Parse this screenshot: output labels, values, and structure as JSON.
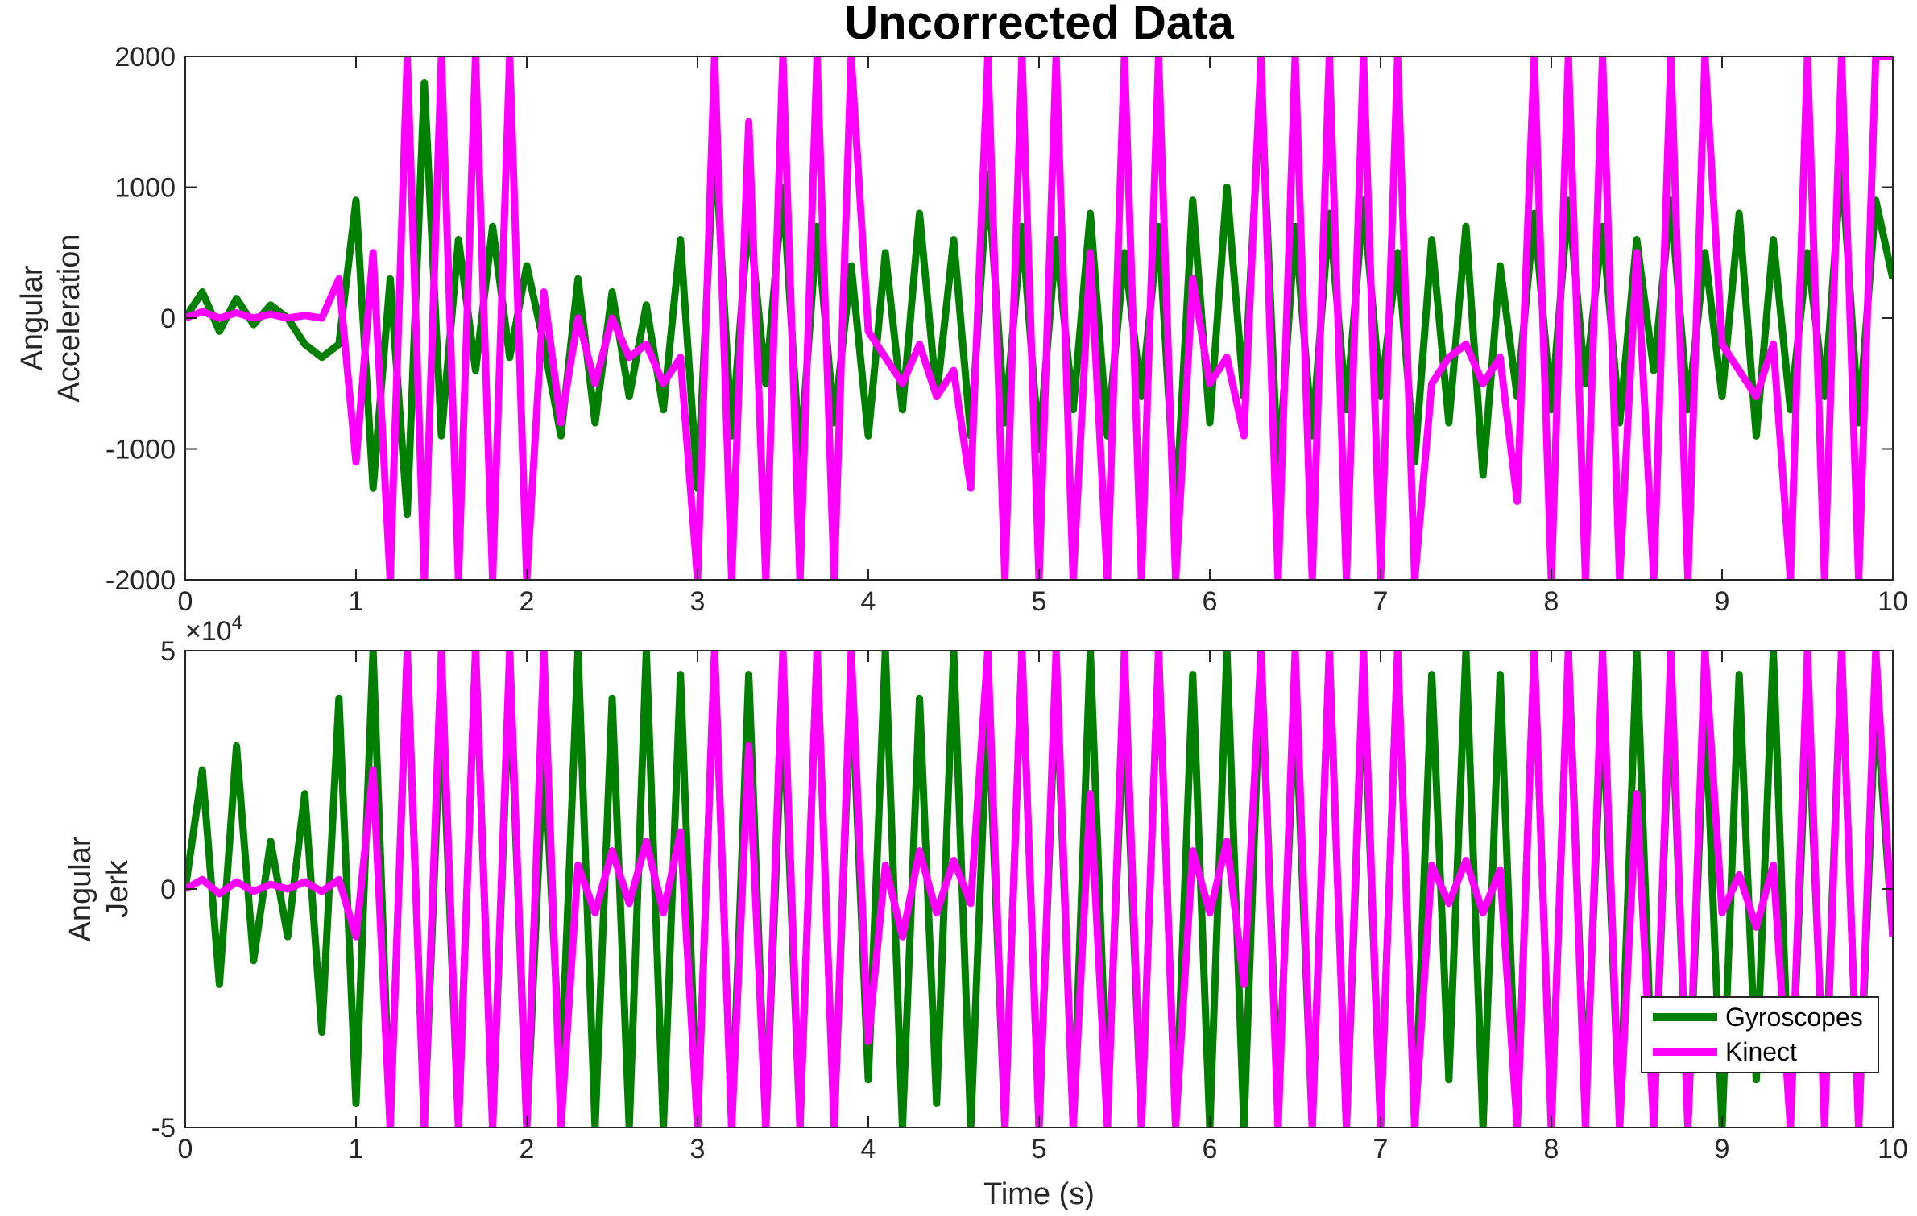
{
  "figure": {
    "title": "Uncorrected Data",
    "colors": {
      "gyroscopes": "#007f00",
      "kinect": "#ff00ff",
      "axis": "#262626",
      "background": "#ffffff"
    }
  },
  "chart_data": [
    {
      "type": "line",
      "title": "Uncorrected Data",
      "xlabel": "",
      "ylabel": [
        "Angular",
        "Acceleration"
      ],
      "xlim": [
        0,
        10
      ],
      "ylim": [
        -2000,
        2000
      ],
      "xticks": [
        "0",
        "1",
        "2",
        "3",
        "4",
        "5",
        "6",
        "7",
        "8",
        "9",
        "10"
      ],
      "yticks": [
        "-2000",
        "-1000",
        "0",
        "1000",
        "2000"
      ],
      "grid": false,
      "series": [
        {
          "name": "Gyroscopes",
          "color": "#007f00",
          "x": [
            0.0,
            0.1,
            0.2,
            0.3,
            0.4,
            0.5,
            0.6,
            0.7,
            0.8,
            0.9,
            1.0,
            1.1,
            1.2,
            1.3,
            1.4,
            1.5,
            1.6,
            1.7,
            1.8,
            1.9,
            2.0,
            2.1,
            2.2,
            2.3,
            2.4,
            2.5,
            2.6,
            2.7,
            2.8,
            2.9,
            3.0,
            3.1,
            3.2,
            3.3,
            3.4,
            3.5,
            3.6,
            3.7,
            3.8,
            3.9,
            4.0,
            4.1,
            4.2,
            4.3,
            4.4,
            4.5,
            4.6,
            4.7,
            4.8,
            4.9,
            5.0,
            5.1,
            5.2,
            5.3,
            5.4,
            5.5,
            5.6,
            5.7,
            5.8,
            5.9,
            6.0,
            6.1,
            6.2,
            6.3,
            6.4,
            6.5,
            6.6,
            6.7,
            6.8,
            6.9,
            7.0,
            7.1,
            7.2,
            7.3,
            7.4,
            7.5,
            7.6,
            7.7,
            7.8,
            7.9,
            8.0,
            8.1,
            8.2,
            8.3,
            8.4,
            8.5,
            8.6,
            8.7,
            8.8,
            8.9,
            9.0,
            9.1,
            9.2,
            9.3,
            9.4,
            9.5,
            9.6,
            9.7,
            9.8,
            9.9,
            10.0
          ],
          "y": [
            0,
            200,
            -100,
            150,
            -50,
            100,
            0,
            -200,
            -300,
            -200,
            900,
            -1300,
            300,
            -1500,
            1800,
            -900,
            600,
            -400,
            700,
            -300,
            400,
            -200,
            -900,
            300,
            -800,
            200,
            -600,
            100,
            -700,
            600,
            -1300,
            1400,
            -900,
            800,
            -500,
            1000,
            -1100,
            700,
            -800,
            400,
            -900,
            500,
            -700,
            800,
            -600,
            600,
            -900,
            1100,
            -800,
            700,
            -1000,
            600,
            -700,
            800,
            -900,
            500,
            -600,
            700,
            -1500,
            900,
            -800,
            1000,
            -600,
            1800,
            -1200,
            700,
            -900,
            800,
            -700,
            900,
            -600,
            500,
            -1100,
            600,
            -800,
            700,
            -1200,
            400,
            -600,
            800,
            -700,
            900,
            -500,
            700,
            -800,
            600,
            -400,
            900,
            -700,
            500,
            -600,
            800,
            -900,
            600,
            -700,
            500,
            -600,
            1200,
            -800,
            900,
            300
          ]
        },
        {
          "name": "Kinect",
          "color": "#ff00ff",
          "x": [
            0.0,
            0.1,
            0.2,
            0.3,
            0.4,
            0.5,
            0.6,
            0.7,
            0.8,
            0.9,
            1.0,
            1.1,
            1.2,
            1.3,
            1.4,
            1.5,
            1.6,
            1.7,
            1.8,
            1.9,
            2.0,
            2.1,
            2.2,
            2.3,
            2.4,
            2.5,
            2.6,
            2.7,
            2.8,
            2.9,
            3.0,
            3.1,
            3.2,
            3.3,
            3.4,
            3.5,
            3.6,
            3.7,
            3.8,
            3.9,
            4.0,
            4.1,
            4.2,
            4.3,
            4.4,
            4.5,
            4.6,
            4.7,
            4.8,
            4.9,
            5.0,
            5.1,
            5.2,
            5.3,
            5.4,
            5.5,
            5.6,
            5.7,
            5.8,
            5.9,
            6.0,
            6.1,
            6.2,
            6.3,
            6.4,
            6.5,
            6.6,
            6.7,
            6.8,
            6.9,
            7.0,
            7.1,
            7.2,
            7.3,
            7.4,
            7.5,
            7.6,
            7.7,
            7.8,
            7.9,
            8.0,
            8.1,
            8.2,
            8.3,
            8.4,
            8.5,
            8.6,
            8.7,
            8.8,
            8.9,
            9.0,
            9.1,
            9.2,
            9.3,
            9.4,
            9.5,
            9.6,
            9.7,
            9.8,
            9.9,
            10.0
          ],
          "y": [
            0,
            50,
            0,
            40,
            0,
            30,
            0,
            20,
            0,
            300,
            -1100,
            500,
            -2000,
            2000,
            -2000,
            2000,
            -2000,
            2000,
            -2000,
            2000,
            -2000,
            200,
            -800,
            0,
            -500,
            0,
            -300,
            -200,
            -500,
            -300,
            -2000,
            2000,
            -2000,
            1500,
            -2000,
            2000,
            -2000,
            2000,
            -2000,
            2000,
            -100,
            -300,
            -500,
            -200,
            -600,
            -400,
            -1300,
            2000,
            -2000,
            2000,
            -2000,
            2000,
            -2000,
            500,
            -2000,
            2000,
            -2000,
            2000,
            -2000,
            300,
            -500,
            -300,
            -900,
            2000,
            -2000,
            2000,
            -2000,
            2000,
            -2000,
            2000,
            -2000,
            2000,
            -2000,
            -500,
            -300,
            -200,
            -500,
            -300,
            -1400,
            2000,
            -2000,
            2000,
            -2000,
            2000,
            -2000,
            500,
            -2000,
            2000,
            -2000,
            2000,
            -200,
            -400,
            -600,
            -200,
            -2000,
            2000,
            -2000,
            2000,
            -2000,
            2000,
            2000
          ]
        }
      ]
    },
    {
      "type": "line",
      "title": "",
      "xlabel": "Time (s)",
      "ylabel": [
        "Angular",
        "Jerk"
      ],
      "xlim": [
        0,
        10
      ],
      "ylim": [
        -50000,
        50000
      ],
      "exponent_label": "×10",
      "exponent_power": "4",
      "xticks": [
        "0",
        "1",
        "2",
        "3",
        "4",
        "5",
        "6",
        "7",
        "8",
        "9",
        "10"
      ],
      "yticks": [
        "-5",
        "0",
        "5"
      ],
      "grid": false,
      "legend": {
        "position": "bottom-right",
        "entries": [
          "Gyroscopes",
          "Kinect"
        ]
      },
      "series": [
        {
          "name": "Gyroscopes",
          "color": "#007f00",
          "x": [
            0.0,
            0.1,
            0.2,
            0.3,
            0.4,
            0.5,
            0.6,
            0.7,
            0.8,
            0.9,
            1.0,
            1.1,
            1.2,
            1.3,
            1.4,
            1.5,
            1.6,
            1.7,
            1.8,
            1.9,
            2.0,
            2.1,
            2.2,
            2.3,
            2.4,
            2.5,
            2.6,
            2.7,
            2.8,
            2.9,
            3.0,
            3.1,
            3.2,
            3.3,
            3.4,
            3.5,
            3.6,
            3.7,
            3.8,
            3.9,
            4.0,
            4.1,
            4.2,
            4.3,
            4.4,
            4.5,
            4.6,
            4.7,
            4.8,
            4.9,
            5.0,
            5.1,
            5.2,
            5.3,
            5.4,
            5.5,
            5.6,
            5.7,
            5.8,
            5.9,
            6.0,
            6.1,
            6.2,
            6.3,
            6.4,
            6.5,
            6.6,
            6.7,
            6.8,
            6.9,
            7.0,
            7.1,
            7.2,
            7.3,
            7.4,
            7.5,
            7.6,
            7.7,
            7.8,
            7.9,
            8.0,
            8.1,
            8.2,
            8.3,
            8.4,
            8.5,
            8.6,
            8.7,
            8.8,
            8.9,
            9.0,
            9.1,
            9.2,
            9.3,
            9.4,
            9.5,
            9.6,
            9.7,
            9.8,
            9.9,
            10.0
          ],
          "y": [
            0,
            25000,
            -20000,
            30000,
            -15000,
            10000,
            -10000,
            20000,
            -30000,
            40000,
            -45000,
            50000,
            -50000,
            50000,
            -50000,
            40000,
            -50000,
            50000,
            -50000,
            45000,
            -50000,
            30000,
            -40000,
            50000,
            -50000,
            40000,
            -50000,
            50000,
            -50000,
            45000,
            -50000,
            50000,
            -50000,
            45000,
            -50000,
            40000,
            -50000,
            50000,
            -50000,
            45000,
            -40000,
            50000,
            -50000,
            40000,
            -45000,
            50000,
            -50000,
            40000,
            -50000,
            50000,
            -50000,
            45000,
            -50000,
            50000,
            -45000,
            40000,
            -50000,
            50000,
            -50000,
            45000,
            -50000,
            50000,
            -50000,
            50000,
            -45000,
            40000,
            -50000,
            50000,
            -50000,
            45000,
            -50000,
            50000,
            -50000,
            45000,
            -40000,
            50000,
            -50000,
            45000,
            -50000,
            50000,
            -50000,
            50000,
            -45000,
            40000,
            -50000,
            50000,
            -50000,
            45000,
            -50000,
            40000,
            -50000,
            45000,
            -40000,
            50000,
            -50000,
            40000,
            -45000,
            50000,
            -50000,
            40000,
            -10000
          ]
        },
        {
          "name": "Kinect",
          "color": "#ff00ff",
          "x": [
            0.0,
            0.1,
            0.2,
            0.3,
            0.4,
            0.5,
            0.6,
            0.7,
            0.8,
            0.9,
            1.0,
            1.1,
            1.2,
            1.3,
            1.4,
            1.5,
            1.6,
            1.7,
            1.8,
            1.9,
            2.0,
            2.1,
            2.2,
            2.3,
            2.4,
            2.5,
            2.6,
            2.7,
            2.8,
            2.9,
            3.0,
            3.1,
            3.2,
            3.3,
            3.4,
            3.5,
            3.6,
            3.7,
            3.8,
            3.9,
            4.0,
            4.1,
            4.2,
            4.3,
            4.4,
            4.5,
            4.6,
            4.7,
            4.8,
            4.9,
            5.0,
            5.1,
            5.2,
            5.3,
            5.4,
            5.5,
            5.6,
            5.7,
            5.8,
            5.9,
            6.0,
            6.1,
            6.2,
            6.3,
            6.4,
            6.5,
            6.6,
            6.7,
            6.8,
            6.9,
            7.0,
            7.1,
            7.2,
            7.3,
            7.4,
            7.5,
            7.6,
            7.7,
            7.8,
            7.9,
            8.0,
            8.1,
            8.2,
            8.3,
            8.4,
            8.5,
            8.6,
            8.7,
            8.8,
            8.9,
            9.0,
            9.1,
            9.2,
            9.3,
            9.4,
            9.5,
            9.6,
            9.7,
            9.8,
            9.9,
            10.0
          ],
          "y": [
            0,
            2000,
            -1000,
            1500,
            -500,
            1000,
            0,
            1500,
            -500,
            2000,
            -10000,
            25000,
            -50000,
            50000,
            -50000,
            50000,
            -50000,
            50000,
            -50000,
            50000,
            -50000,
            50000,
            -50000,
            5000,
            -5000,
            8000,
            -3000,
            10000,
            -5000,
            12000,
            -50000,
            50000,
            -50000,
            30000,
            -50000,
            50000,
            -50000,
            50000,
            -50000,
            50000,
            -32000,
            5000,
            -10000,
            8000,
            -5000,
            6000,
            -3000,
            50000,
            -50000,
            50000,
            -50000,
            50000,
            -50000,
            20000,
            -50000,
            50000,
            -50000,
            50000,
            -50000,
            8000,
            -5000,
            10000,
            -20000,
            50000,
            -50000,
            50000,
            -50000,
            50000,
            -50000,
            50000,
            -50000,
            50000,
            -50000,
            5000,
            -3000,
            6000,
            -5000,
            4000,
            -50000,
            50000,
            -50000,
            50000,
            -50000,
            50000,
            -50000,
            20000,
            -50000,
            50000,
            -50000,
            50000,
            -5000,
            3000,
            -8000,
            5000,
            -50000,
            50000,
            -50000,
            50000,
            -50000,
            50000,
            -10000
          ]
        }
      ]
    }
  ]
}
